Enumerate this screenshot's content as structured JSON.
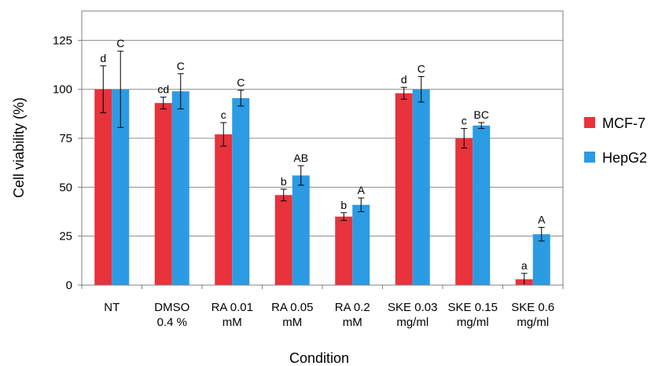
{
  "chart_data": {
    "type": "bar",
    "xlabel": "Condition",
    "ylabel": "Cell viability (%)",
    "ylim": [
      0,
      140
    ],
    "yticks": [
      0,
      25,
      50,
      75,
      100,
      125
    ],
    "grid": true,
    "legend_position": "right",
    "categories": [
      [
        "NT"
      ],
      [
        "DMSO",
        "0.4 %"
      ],
      [
        "RA 0.01",
        "mM"
      ],
      [
        "RA 0.05",
        "mM"
      ],
      [
        "RA 0.2",
        "mM"
      ],
      [
        "SKE 0.03",
        "mg/ml"
      ],
      [
        "SKE 0.15",
        "mg/ml"
      ],
      [
        "SKE 0.6",
        "mg/ml"
      ]
    ],
    "series": [
      {
        "name": "MCF-7",
        "color": "#e8323c",
        "values": [
          100,
          93,
          77,
          46,
          35,
          98,
          75,
          3
        ],
        "errors": [
          12,
          3,
          6,
          3,
          2,
          3,
          5,
          3
        ],
        "labels": [
          "d",
          "cd",
          "c",
          "b",
          "b",
          "d",
          "c",
          "a"
        ]
      },
      {
        "name": "HepG2",
        "color": "#2b9be3",
        "values": [
          100,
          99,
          95.5,
          56,
          41,
          100,
          81.5,
          26
        ],
        "errors": [
          19.5,
          9,
          4,
          5,
          3.5,
          6.5,
          1.5,
          3.5
        ],
        "labels": [
          "C",
          "C",
          "C",
          "AB",
          "A",
          "C",
          "BC",
          "A"
        ]
      }
    ]
  }
}
